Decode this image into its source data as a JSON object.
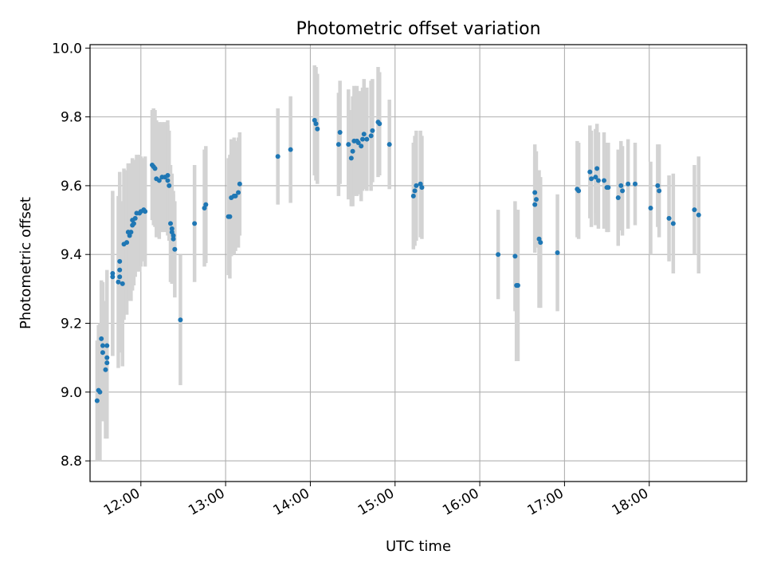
{
  "chart_data": {
    "type": "scatter",
    "title": "Photometric offset variation",
    "xlabel": "UTC time",
    "ylabel": "Photometric offset",
    "x_ticks": [
      "12:00",
      "13:00",
      "14:00",
      "15:00",
      "16:00",
      "17:00",
      "18:00"
    ],
    "x_tick_hours": [
      12,
      13,
      14,
      15,
      16,
      17,
      18
    ],
    "xlim_hours": [
      11.4,
      19.15
    ],
    "y_ticks": [
      "8.8",
      "9.0",
      "9.2",
      "9.4",
      "9.6",
      "9.8",
      "10.0"
    ],
    "y_tick_values": [
      8.8,
      9.0,
      9.2,
      9.4,
      9.6,
      9.8,
      10.0
    ],
    "ylim": [
      8.74,
      10.01
    ],
    "grid": true,
    "point_color": "#1f77b4",
    "errorbar_color": "#d3d3d3",
    "series": [
      {
        "points": [
          {
            "x": "11:29",
            "y": 8.975,
            "err": 0.175
          },
          {
            "x": "11:30",
            "y": 9.005,
            "err": 0.19
          },
          {
            "x": "11:31",
            "y": 9.0,
            "err": 0.2
          },
          {
            "x": "11:32",
            "y": 9.155,
            "err": 0.17
          },
          {
            "x": "11:33",
            "y": 9.135,
            "err": 0.185
          },
          {
            "x": "11:33",
            "y": 9.115,
            "err": 0.2
          },
          {
            "x": "11:35",
            "y": 9.065,
            "err": 0.2
          },
          {
            "x": "11:36",
            "y": 9.085,
            "err": 0.22
          },
          {
            "x": "11:36",
            "y": 9.1,
            "err": 0.2
          },
          {
            "x": "11:36",
            "y": 9.135,
            "err": 0.22
          },
          {
            "x": "11:40",
            "y": 9.345,
            "err": 0.24
          },
          {
            "x": "11:40",
            "y": 9.335,
            "err": 0.23
          },
          {
            "x": "11:44",
            "y": 9.32,
            "err": 0.25
          },
          {
            "x": "11:45",
            "y": 9.38,
            "err": 0.26
          },
          {
            "x": "11:45",
            "y": 9.355,
            "err": 0.23
          },
          {
            "x": "11:45",
            "y": 9.335,
            "err": 0.22
          },
          {
            "x": "11:47",
            "y": 9.315,
            "err": 0.24
          },
          {
            "x": "11:48",
            "y": 9.43,
            "err": 0.22
          },
          {
            "x": "11:50",
            "y": 9.435,
            "err": 0.21
          },
          {
            "x": "11:51",
            "y": 9.465,
            "err": 0.2
          },
          {
            "x": "11:52",
            "y": 9.455,
            "err": 0.19
          },
          {
            "x": "11:53",
            "y": 9.465,
            "err": 0.2
          },
          {
            "x": "11:54",
            "y": 9.485,
            "err": 0.19
          },
          {
            "x": "11:54",
            "y": 9.5,
            "err": 0.18
          },
          {
            "x": "11:55",
            "y": 9.49,
            "err": 0.18
          },
          {
            "x": "11:56",
            "y": 9.505,
            "err": 0.17
          },
          {
            "x": "11:57",
            "y": 9.52,
            "err": 0.17
          },
          {
            "x": "11:59",
            "y": 9.52,
            "err": 0.17
          },
          {
            "x": "12:00",
            "y": 9.525,
            "err": 0.16
          },
          {
            "x": "12:02",
            "y": 9.53,
            "err": 0.15
          },
          {
            "x": "12:03",
            "y": 9.525,
            "err": 0.16
          },
          {
            "x": "12:08",
            "y": 9.66,
            "err": 0.16
          },
          {
            "x": "12:09",
            "y": 9.655,
            "err": 0.17
          },
          {
            "x": "12:10",
            "y": 9.65,
            "err": 0.17
          },
          {
            "x": "12:11",
            "y": 9.62,
            "err": 0.17
          },
          {
            "x": "12:13",
            "y": 9.615,
            "err": 0.17
          },
          {
            "x": "12:15",
            "y": 9.625,
            "err": 0.16
          },
          {
            "x": "12:17",
            "y": 9.625,
            "err": 0.16
          },
          {
            "x": "12:19",
            "y": 9.63,
            "err": 0.16
          },
          {
            "x": "12:19",
            "y": 9.615,
            "err": 0.16
          },
          {
            "x": "12:20",
            "y": 9.6,
            "err": 0.16
          },
          {
            "x": "12:21",
            "y": 9.49,
            "err": 0.17
          },
          {
            "x": "12:22",
            "y": 9.475,
            "err": 0.16
          },
          {
            "x": "12:22",
            "y": 9.465,
            "err": 0.15
          },
          {
            "x": "12:23",
            "y": 9.445,
            "err": 0.13
          },
          {
            "x": "12:23",
            "y": 9.455,
            "err": 0.13
          },
          {
            "x": "12:24",
            "y": 9.415,
            "err": 0.14
          },
          {
            "x": "12:28",
            "y": 9.21,
            "err": 0.19
          },
          {
            "x": "12:38",
            "y": 9.49,
            "err": 0.17
          },
          {
            "x": "12:45",
            "y": 9.535,
            "err": 0.17
          },
          {
            "x": "12:46",
            "y": 9.545,
            "err": 0.17
          },
          {
            "x": "13:02",
            "y": 9.51,
            "err": 0.17
          },
          {
            "x": "13:03",
            "y": 9.51,
            "err": 0.18
          },
          {
            "x": "13:04",
            "y": 9.565,
            "err": 0.17
          },
          {
            "x": "13:06",
            "y": 9.57,
            "err": 0.17
          },
          {
            "x": "13:07",
            "y": 9.57,
            "err": 0.16
          },
          {
            "x": "13:09",
            "y": 9.58,
            "err": 0.16
          },
          {
            "x": "13:10",
            "y": 9.605,
            "err": 0.15
          },
          {
            "x": "13:37",
            "y": 9.685,
            "err": 0.14
          },
          {
            "x": "13:46",
            "y": 9.705,
            "err": 0.155
          },
          {
            "x": "14:03",
            "y": 9.79,
            "err": 0.16
          },
          {
            "x": "14:04",
            "y": 9.78,
            "err": 0.165
          },
          {
            "x": "14:05",
            "y": 9.765,
            "err": 0.16
          },
          {
            "x": "14:20",
            "y": 9.72,
            "err": 0.15
          },
          {
            "x": "14:21",
            "y": 9.755,
            "err": 0.15
          },
          {
            "x": "14:27",
            "y": 9.72,
            "err": 0.16
          },
          {
            "x": "14:29",
            "y": 9.68,
            "err": 0.14
          },
          {
            "x": "14:30",
            "y": 9.7,
            "err": 0.16
          },
          {
            "x": "14:31",
            "y": 9.73,
            "err": 0.16
          },
          {
            "x": "14:33",
            "y": 9.73,
            "err": 0.16
          },
          {
            "x": "14:34",
            "y": 9.725,
            "err": 0.15
          },
          {
            "x": "14:36",
            "y": 9.715,
            "err": 0.16
          },
          {
            "x": "14:37",
            "y": 9.735,
            "err": 0.15
          },
          {
            "x": "14:38",
            "y": 9.75,
            "err": 0.16
          },
          {
            "x": "14:40",
            "y": 9.735,
            "err": 0.15
          },
          {
            "x": "14:43",
            "y": 9.745,
            "err": 0.16
          },
          {
            "x": "14:44",
            "y": 9.76,
            "err": 0.15
          },
          {
            "x": "14:48",
            "y": 9.785,
            "err": 0.16
          },
          {
            "x": "14:49",
            "y": 9.78,
            "err": 0.15
          },
          {
            "x": "14:56",
            "y": 9.72,
            "err": 0.13
          },
          {
            "x": "15:13",
            "y": 9.57,
            "err": 0.155
          },
          {
            "x": "15:14",
            "y": 9.585,
            "err": 0.16
          },
          {
            "x": "15:15",
            "y": 9.6,
            "err": 0.16
          },
          {
            "x": "15:18",
            "y": 9.605,
            "err": 0.155
          },
          {
            "x": "15:19",
            "y": 9.595,
            "err": 0.15
          },
          {
            "x": "16:13",
            "y": 9.4,
            "err": 0.13
          },
          {
            "x": "16:25",
            "y": 9.395,
            "err": 0.16
          },
          {
            "x": "16:26",
            "y": 9.31,
            "err": 0.22
          },
          {
            "x": "16:27",
            "y": 9.31,
            "err": 0.22
          },
          {
            "x": "16:39",
            "y": 9.58,
            "err": 0.14
          },
          {
            "x": "16:39",
            "y": 9.545,
            "err": 0.14
          },
          {
            "x": "16:40",
            "y": 9.56,
            "err": 0.14
          },
          {
            "x": "16:42",
            "y": 9.445,
            "err": 0.2
          },
          {
            "x": "16:43",
            "y": 9.435,
            "err": 0.19
          },
          {
            "x": "16:55",
            "y": 9.405,
            "err": 0.17
          },
          {
            "x": "17:09",
            "y": 9.59,
            "err": 0.14
          },
          {
            "x": "17:10",
            "y": 9.585,
            "err": 0.14
          },
          {
            "x": "17:18",
            "y": 9.64,
            "err": 0.135
          },
          {
            "x": "17:19",
            "y": 9.62,
            "err": 0.14
          },
          {
            "x": "17:22",
            "y": 9.625,
            "err": 0.14
          },
          {
            "x": "17:23",
            "y": 9.65,
            "err": 0.13
          },
          {
            "x": "17:24",
            "y": 9.615,
            "err": 0.14
          },
          {
            "x": "17:28",
            "y": 9.615,
            "err": 0.14
          },
          {
            "x": "17:30",
            "y": 9.595,
            "err": 0.13
          },
          {
            "x": "17:31",
            "y": 9.595,
            "err": 0.13
          },
          {
            "x": "17:38",
            "y": 9.565,
            "err": 0.14
          },
          {
            "x": "17:40",
            "y": 9.6,
            "err": 0.13
          },
          {
            "x": "17:41",
            "y": 9.585,
            "err": 0.13
          },
          {
            "x": "17:45",
            "y": 9.605,
            "err": 0.13
          },
          {
            "x": "17:50",
            "y": 9.605,
            "err": 0.12
          },
          {
            "x": "18:01",
            "y": 9.535,
            "err": 0.135
          },
          {
            "x": "18:06",
            "y": 9.6,
            "err": 0.12
          },
          {
            "x": "18:07",
            "y": 9.585,
            "err": 0.135
          },
          {
            "x": "18:14",
            "y": 9.505,
            "err": 0.125
          },
          {
            "x": "18:17",
            "y": 9.49,
            "err": 0.145
          },
          {
            "x": "18:32",
            "y": 9.53,
            "err": 0.13
          },
          {
            "x": "18:35",
            "y": 9.515,
            "err": 0.17
          }
        ]
      }
    ]
  }
}
